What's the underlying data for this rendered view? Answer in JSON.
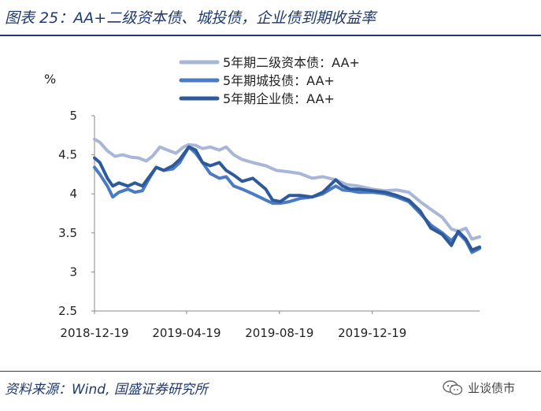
{
  "figure": {
    "title": "图表 25：AA+二级资本债、城投债，企业债到期收益率",
    "source": "资料来源：Wind, 国盛证券研究所",
    "watermark": "业谈债市",
    "watermark_icon": "wechat-icon"
  },
  "chart_data": {
    "type": "line",
    "ylabel": "%",
    "ylim": [
      2.5,
      5
    ],
    "yticks": [
      "5",
      "4.5",
      "4",
      "3.5",
      "3",
      "2.5"
    ],
    "xlim": [
      "2018-12-19",
      "2020-05-08"
    ],
    "xticks": [
      "2018-12-19",
      "2019-04-19",
      "2019-08-19",
      "2019-12-19"
    ],
    "legend_position": "top-center",
    "grid": false,
    "series": [
      {
        "name": "5年期二级资本债：AA+",
        "color": "#a8b7d8",
        "points": [
          [
            "2018-12-19",
            4.7
          ],
          [
            "2018-12-26",
            4.66
          ],
          [
            "2019-01-05",
            4.55
          ],
          [
            "2019-01-15",
            4.48
          ],
          [
            "2019-01-25",
            4.5
          ],
          [
            "2019-02-05",
            4.47
          ],
          [
            "2019-02-15",
            4.46
          ],
          [
            "2019-02-25",
            4.42
          ],
          [
            "2019-03-05",
            4.48
          ],
          [
            "2019-03-15",
            4.6
          ],
          [
            "2019-03-25",
            4.56
          ],
          [
            "2019-04-05",
            4.52
          ],
          [
            "2019-04-15",
            4.6
          ],
          [
            "2019-04-22",
            4.63
          ],
          [
            "2019-05-01",
            4.62
          ],
          [
            "2019-05-10",
            4.58
          ],
          [
            "2019-05-20",
            4.6
          ],
          [
            "2019-06-01",
            4.56
          ],
          [
            "2019-06-10",
            4.6
          ],
          [
            "2019-06-20",
            4.5
          ],
          [
            "2019-07-01",
            4.44
          ],
          [
            "2019-07-15",
            4.4
          ],
          [
            "2019-08-01",
            4.36
          ],
          [
            "2019-08-15",
            4.3
          ],
          [
            "2019-09-01",
            4.28
          ],
          [
            "2019-09-15",
            4.26
          ],
          [
            "2019-10-01",
            4.2
          ],
          [
            "2019-10-15",
            4.22
          ],
          [
            "2019-11-01",
            4.18
          ],
          [
            "2019-11-15",
            4.12
          ],
          [
            "2019-12-01",
            4.1
          ],
          [
            "2019-12-19",
            4.06
          ],
          [
            "2020-01-05",
            4.04
          ],
          [
            "2020-01-20",
            4.05
          ],
          [
            "2020-02-05",
            4.02
          ],
          [
            "2020-02-20",
            3.9
          ],
          [
            "2020-03-05",
            3.8
          ],
          [
            "2020-03-20",
            3.7
          ],
          [
            "2020-04-01",
            3.55
          ],
          [
            "2020-04-10",
            3.52
          ],
          [
            "2020-04-20",
            3.56
          ],
          [
            "2020-04-28",
            3.42
          ],
          [
            "2020-05-08",
            3.45
          ]
        ]
      },
      {
        "name": "5年期城投债：AA+",
        "color": "#4a7bc4",
        "points": [
          [
            "2018-12-19",
            4.34
          ],
          [
            "2018-12-26",
            4.25
          ],
          [
            "2019-01-05",
            4.1
          ],
          [
            "2019-01-12",
            3.96
          ],
          [
            "2019-01-20",
            4.02
          ],
          [
            "2019-02-01",
            4.06
          ],
          [
            "2019-02-10",
            4.02
          ],
          [
            "2019-02-20",
            4.04
          ],
          [
            "2019-03-01",
            4.2
          ],
          [
            "2019-03-10",
            4.34
          ],
          [
            "2019-03-20",
            4.3
          ],
          [
            "2019-04-01",
            4.32
          ],
          [
            "2019-04-10",
            4.4
          ],
          [
            "2019-04-22",
            4.6
          ],
          [
            "2019-05-01",
            4.52
          ],
          [
            "2019-05-10",
            4.4
          ],
          [
            "2019-05-20",
            4.26
          ],
          [
            "2019-06-01",
            4.2
          ],
          [
            "2019-06-10",
            4.22
          ],
          [
            "2019-06-20",
            4.1
          ],
          [
            "2019-07-01",
            4.06
          ],
          [
            "2019-07-15",
            4.0
          ],
          [
            "2019-08-01",
            3.92
          ],
          [
            "2019-08-10",
            3.88
          ],
          [
            "2019-08-20",
            3.88
          ],
          [
            "2019-09-01",
            3.9
          ],
          [
            "2019-09-15",
            3.94
          ],
          [
            "2019-10-01",
            3.96
          ],
          [
            "2019-10-15",
            4.0
          ],
          [
            "2019-11-01",
            4.1
          ],
          [
            "2019-11-10",
            4.05
          ],
          [
            "2019-11-20",
            4.04
          ],
          [
            "2019-12-01",
            4.02
          ],
          [
            "2019-12-19",
            4.02
          ],
          [
            "2020-01-05",
            4.0
          ],
          [
            "2020-01-20",
            3.96
          ],
          [
            "2020-02-05",
            3.9
          ],
          [
            "2020-02-20",
            3.75
          ],
          [
            "2020-03-05",
            3.6
          ],
          [
            "2020-03-20",
            3.5
          ],
          [
            "2020-04-01",
            3.4
          ],
          [
            "2020-04-10",
            3.5
          ],
          [
            "2020-04-20",
            3.4
          ],
          [
            "2020-04-28",
            3.25
          ],
          [
            "2020-05-08",
            3.3
          ]
        ]
      },
      {
        "name": "5年期企业债：AA+",
        "color": "#2e5a9c",
        "points": [
          [
            "2018-12-19",
            4.46
          ],
          [
            "2018-12-26",
            4.4
          ],
          [
            "2019-01-05",
            4.2
          ],
          [
            "2019-01-12",
            4.1
          ],
          [
            "2019-01-20",
            4.14
          ],
          [
            "2019-02-01",
            4.1
          ],
          [
            "2019-02-10",
            4.14
          ],
          [
            "2019-02-20",
            4.1
          ],
          [
            "2019-03-01",
            4.22
          ],
          [
            "2019-03-10",
            4.34
          ],
          [
            "2019-03-20",
            4.3
          ],
          [
            "2019-04-01",
            4.36
          ],
          [
            "2019-04-10",
            4.44
          ],
          [
            "2019-04-22",
            4.6
          ],
          [
            "2019-05-01",
            4.56
          ],
          [
            "2019-05-10",
            4.4
          ],
          [
            "2019-05-20",
            4.36
          ],
          [
            "2019-06-01",
            4.4
          ],
          [
            "2019-06-10",
            4.3
          ],
          [
            "2019-06-20",
            4.24
          ],
          [
            "2019-07-01",
            4.16
          ],
          [
            "2019-07-15",
            4.2
          ],
          [
            "2019-08-01",
            4.06
          ],
          [
            "2019-08-10",
            3.92
          ],
          [
            "2019-08-20",
            3.9
          ],
          [
            "2019-09-01",
            3.98
          ],
          [
            "2019-09-15",
            3.98
          ],
          [
            "2019-10-01",
            3.96
          ],
          [
            "2019-10-15",
            4.02
          ],
          [
            "2019-11-01",
            4.18
          ],
          [
            "2019-11-10",
            4.1
          ],
          [
            "2019-11-20",
            4.06
          ],
          [
            "2019-12-01",
            4.06
          ],
          [
            "2019-12-19",
            4.04
          ],
          [
            "2020-01-05",
            4.02
          ],
          [
            "2020-01-20",
            3.98
          ],
          [
            "2020-02-05",
            3.92
          ],
          [
            "2020-02-20",
            3.78
          ],
          [
            "2020-03-05",
            3.56
          ],
          [
            "2020-03-20",
            3.48
          ],
          [
            "2020-04-01",
            3.34
          ],
          [
            "2020-04-10",
            3.52
          ],
          [
            "2020-04-20",
            3.42
          ],
          [
            "2020-04-28",
            3.28
          ],
          [
            "2020-05-08",
            3.32
          ]
        ]
      }
    ]
  }
}
